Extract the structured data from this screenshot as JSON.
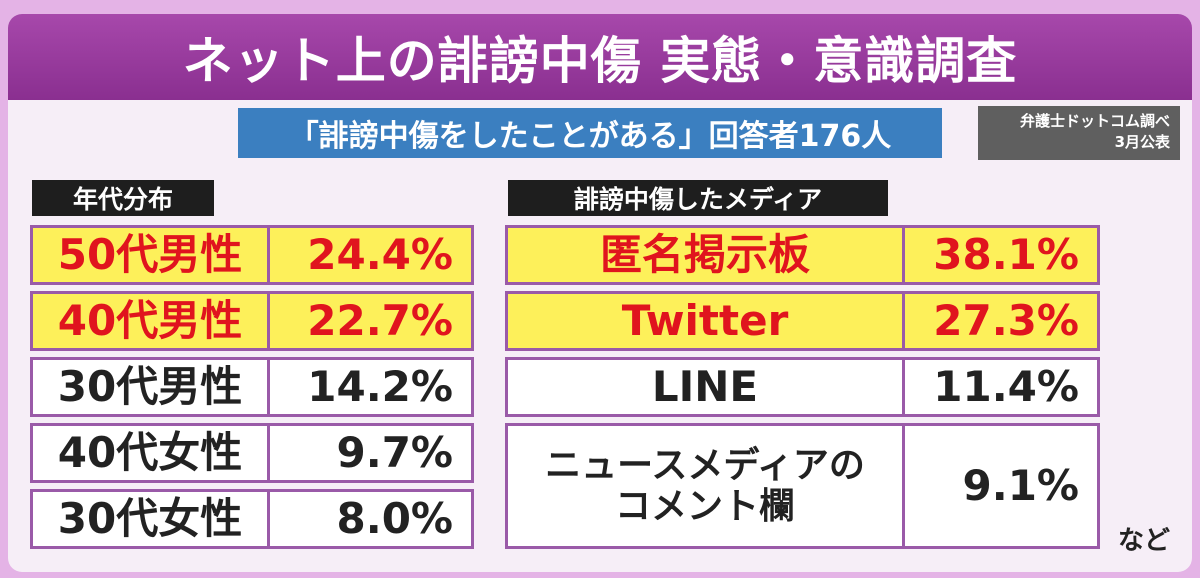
{
  "header": {
    "title": "ネット上の誹謗中傷 実態・意識調査",
    "subtitle": "「誹謗中傷をしたことがある」回答者176人",
    "source": [
      "弁護士ドットコム調べ",
      "3月公表"
    ]
  },
  "left": {
    "heading": "年代分布",
    "rows": [
      {
        "label": [
          "50代男性"
        ],
        "value": "24.4%",
        "highlight": true
      },
      {
        "label": [
          "40代男性"
        ],
        "value": "22.7%",
        "highlight": true
      },
      {
        "label": [
          "30代男性"
        ],
        "value": "14.2%",
        "highlight": false
      },
      {
        "label": [
          "40代女性"
        ],
        "value": "9.7%",
        "highlight": false
      },
      {
        "label": [
          "30代女性"
        ],
        "value": "8.0%",
        "highlight": false
      }
    ]
  },
  "right": {
    "heading": "誹謗中傷したメディア",
    "rows": [
      {
        "label": [
          "匿名掲示板"
        ],
        "value": "38.1%",
        "highlight": true
      },
      {
        "label": [
          "Twitter"
        ],
        "value": "27.3%",
        "highlight": true
      },
      {
        "label": [
          "LINE"
        ],
        "value": "11.4%",
        "highlight": false
      },
      {
        "label": [
          "ニュースメディアの",
          "コメント欄"
        ],
        "value": "9.1%",
        "highlight": false
      }
    ],
    "note": "など"
  }
}
